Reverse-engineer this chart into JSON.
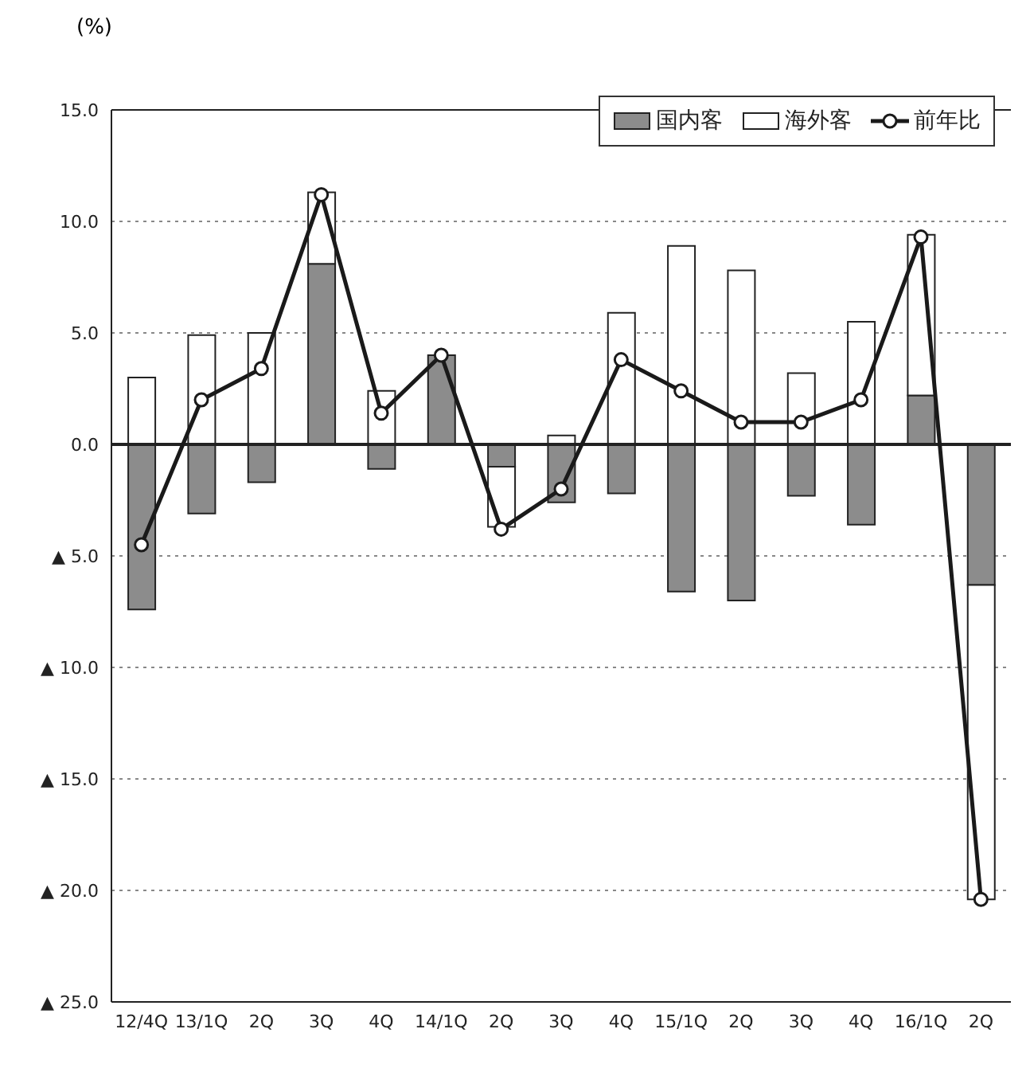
{
  "chart_data": {
    "type": "bar",
    "stacked": true,
    "ylabel": "(%)",
    "categories": [
      "12/4Q",
      "13/1Q",
      "2Q",
      "3Q",
      "4Q",
      "14/1Q",
      "2Q",
      "3Q",
      "4Q",
      "15/1Q",
      "2Q",
      "3Q",
      "4Q",
      "16/1Q",
      "2Q"
    ],
    "series": [
      {
        "name": "国内客",
        "color": "#8c8c8c",
        "values": [
          -7.4,
          -3.1,
          -1.7,
          8.1,
          -1.1,
          4.0,
          -1.0,
          -2.6,
          -2.2,
          -6.6,
          -7.0,
          -2.3,
          -3.6,
          2.2,
          -6.3
        ]
      },
      {
        "name": "海外客",
        "color": "#ffffff",
        "values": [
          3.0,
          4.9,
          5.0,
          3.2,
          2.4,
          0,
          -2.7,
          0.4,
          5.9,
          8.9,
          7.8,
          3.2,
          5.5,
          7.2,
          -14.1
        ]
      },
      {
        "name": "前年比",
        "type": "line",
        "color": "#1a1a1a",
        "marker": "circle",
        "values": [
          -4.5,
          2.0,
          3.4,
          11.2,
          1.4,
          4.0,
          -3.8,
          -2.0,
          3.8,
          2.4,
          1.0,
          1.0,
          2.0,
          9.3,
          -20.4
        ]
      }
    ],
    "ylim": [
      -25,
      15
    ],
    "yticks": [
      {
        "value": -25,
        "label": "▲ 25.0"
      },
      {
        "value": -20,
        "label": "▲ 20.0"
      },
      {
        "value": -15,
        "label": "▲ 15.0"
      },
      {
        "value": -10,
        "label": "▲ 10.0"
      },
      {
        "value": -5,
        "label": "▲ 5.0"
      },
      {
        "value": 0,
        "label": "0.0"
      },
      {
        "value": 5,
        "label": "5.0"
      },
      {
        "value": 10,
        "label": "10.0"
      },
      {
        "value": 15,
        "label": "15.0"
      }
    ],
    "grid": "y",
    "legend": "top right"
  }
}
